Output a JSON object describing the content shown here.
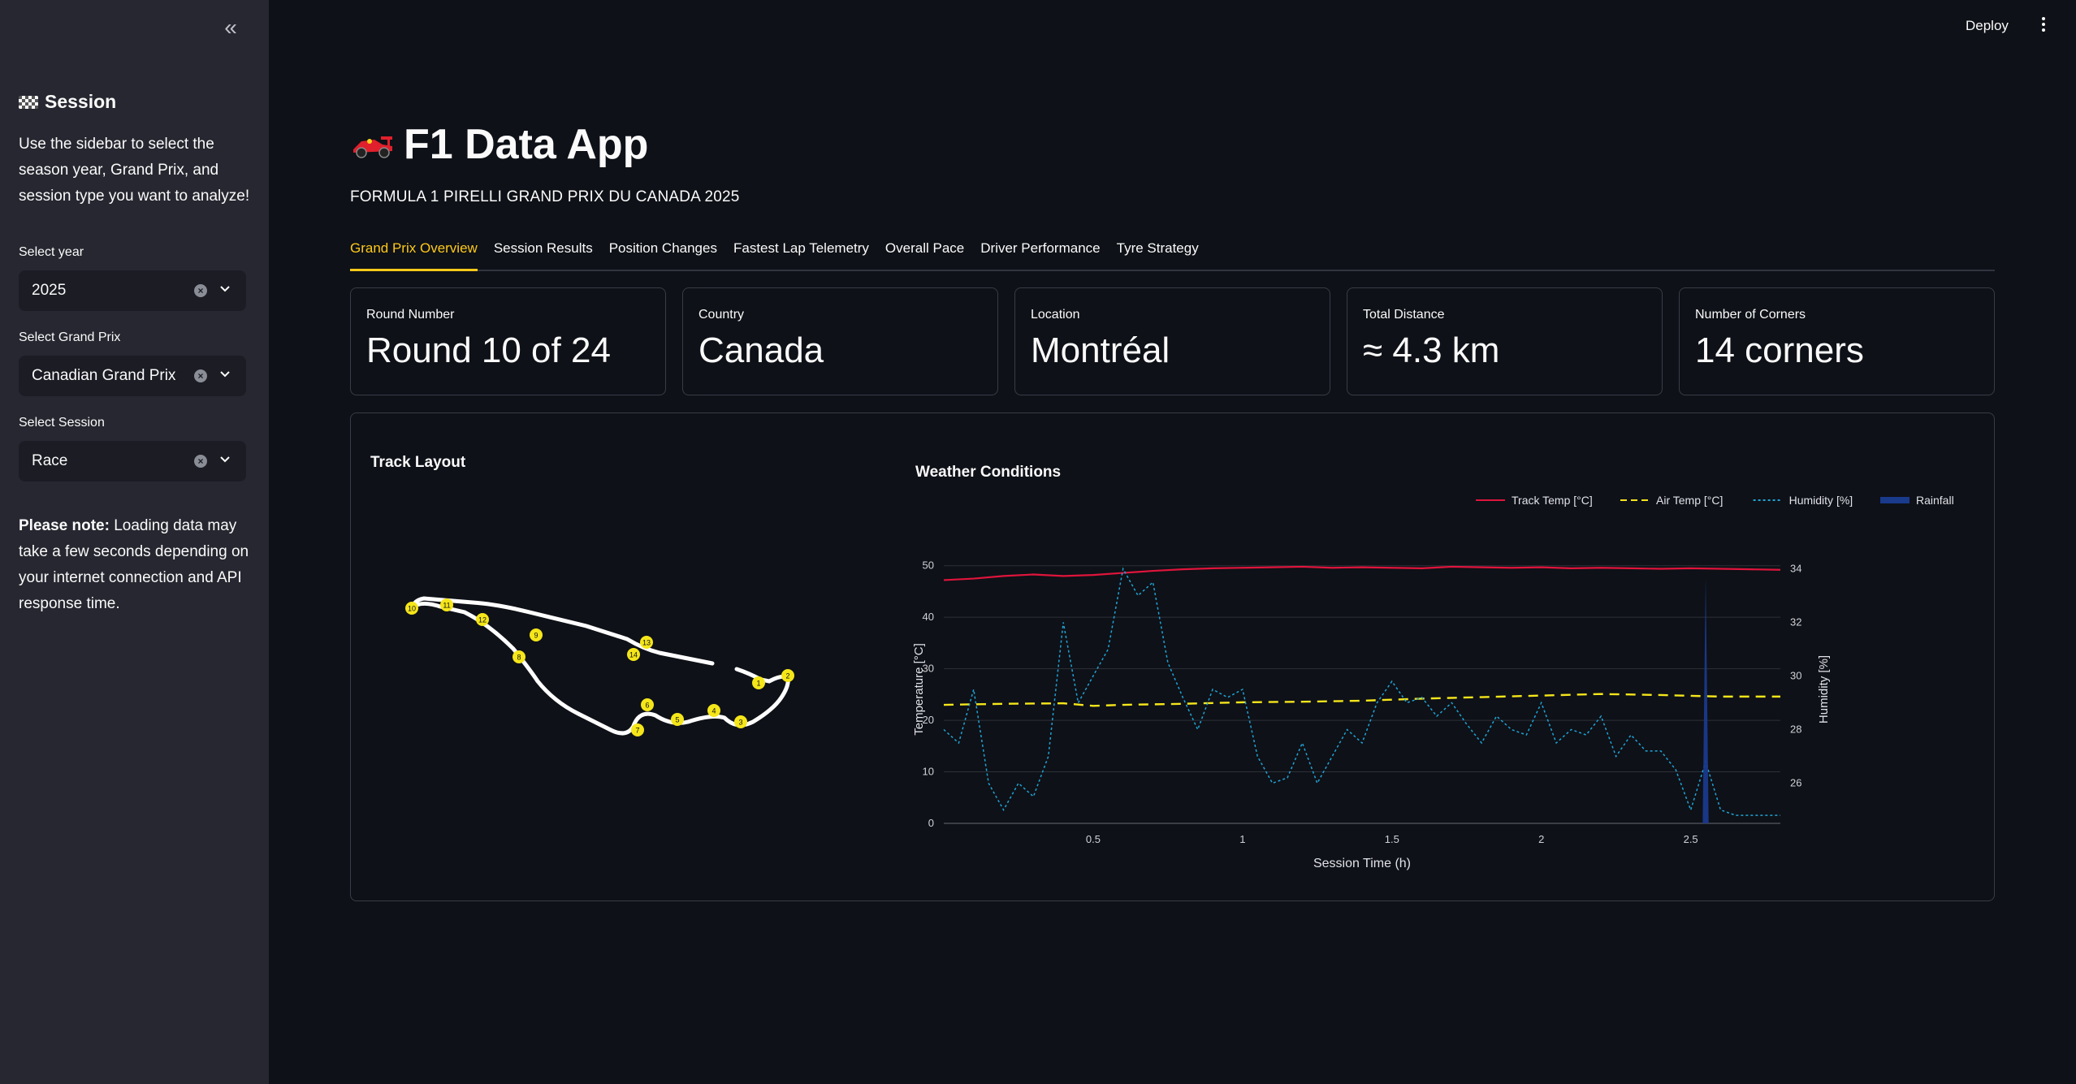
{
  "sidebar": {
    "heading": "Session",
    "intro": "Use the sidebar to select the season year, Grand Prix, and session type you want to analyze!",
    "year_label": "Select year",
    "year_value": "2025",
    "gp_label": "Select Grand Prix",
    "gp_value": "Canadian Grand Prix",
    "session_label": "Select Session",
    "session_value": "Race",
    "note_bold": "Please note:",
    "note_text": " Loading data may take a few seconds depending on your internet connection and API response time."
  },
  "topbar": {
    "deploy": "Deploy"
  },
  "main": {
    "title": "F1 Data App",
    "subtitle": "FORMULA 1 PIRELLI GRAND PRIX DU CANADA 2025",
    "tabs": [
      "Grand Prix Overview",
      "Session Results",
      "Position Changes",
      "Fastest Lap Telemetry",
      "Overall Pace",
      "Driver Performance",
      "Tyre Strategy"
    ],
    "cards": [
      {
        "label": "Round Number",
        "value": "Round 10 of 24"
      },
      {
        "label": "Country",
        "value": "Canada"
      },
      {
        "label": "Location",
        "value": "Montréal"
      },
      {
        "label": "Total Distance",
        "value": "≈ 4.3 km"
      },
      {
        "label": "Number of Corners",
        "value": "14 corners"
      }
    ],
    "track_title": "Track Layout",
    "weather_title": "Weather Conditions"
  },
  "track": {
    "corners": [
      "1",
      "2",
      "3",
      "4",
      "5",
      "6",
      "7",
      "8",
      "9",
      "10",
      "11",
      "12",
      "13",
      "14"
    ]
  },
  "chart_data": {
    "type": "line",
    "xlabel": "Session Time (h)",
    "ylabel": "Temperature [°C]",
    "y2label": "Humidity [%]",
    "xticks": [
      "0.5",
      "1",
      "1.5",
      "2",
      "2.5"
    ],
    "yticks": [
      "0",
      "10",
      "20",
      "30",
      "40",
      "50"
    ],
    "y2ticks": [
      "26",
      "28",
      "30",
      "32",
      "34"
    ],
    "xlim": [
      0,
      2.8
    ],
    "ylim": [
      0,
      52
    ],
    "y2lim": [
      24.5,
      34.5
    ],
    "series": [
      {
        "name": "Track Temp [°C]",
        "color": "#e0143c",
        "style": "solid",
        "x": [
          0,
          0.1,
          0.2,
          0.3,
          0.4,
          0.5,
          0.6,
          0.7,
          0.8,
          0.9,
          1.0,
          1.1,
          1.2,
          1.3,
          1.4,
          1.5,
          1.6,
          1.7,
          1.8,
          1.9,
          2.0,
          2.1,
          2.2,
          2.3,
          2.4,
          2.5,
          2.6,
          2.7,
          2.8
        ],
        "y": [
          47.2,
          47.5,
          48.0,
          48.3,
          48.0,
          48.2,
          48.6,
          49.0,
          49.3,
          49.5,
          49.6,
          49.7,
          49.8,
          49.6,
          49.7,
          49.6,
          49.5,
          49.8,
          49.7,
          49.6,
          49.7,
          49.5,
          49.6,
          49.5,
          49.4,
          49.5,
          49.4,
          49.3,
          49.2
        ]
      },
      {
        "name": "Air Temp [°C]",
        "color": "#f5e61a",
        "style": "dashed",
        "x": [
          0,
          0.2,
          0.4,
          0.5,
          0.6,
          0.8,
          1.0,
          1.2,
          1.4,
          1.6,
          1.8,
          2.0,
          2.2,
          2.4,
          2.6,
          2.8
        ],
        "y": [
          23.0,
          23.2,
          23.3,
          22.8,
          23.0,
          23.2,
          23.5,
          23.6,
          23.8,
          24.2,
          24.5,
          24.8,
          25.1,
          24.9,
          24.6,
          24.6
        ]
      },
      {
        "name": "Humidity [%]",
        "color": "#1fa3d6",
        "style": "dotted",
        "axis": "y2",
        "x": [
          0,
          0.05,
          0.1,
          0.15,
          0.2,
          0.25,
          0.3,
          0.35,
          0.4,
          0.45,
          0.5,
          0.55,
          0.6,
          0.65,
          0.7,
          0.75,
          0.8,
          0.85,
          0.9,
          0.95,
          1.0,
          1.05,
          1.1,
          1.15,
          1.2,
          1.25,
          1.3,
          1.35,
          1.4,
          1.45,
          1.5,
          1.55,
          1.6,
          1.65,
          1.7,
          1.75,
          1.8,
          1.85,
          1.9,
          1.95,
          2.0,
          2.05,
          2.1,
          2.15,
          2.2,
          2.25,
          2.3,
          2.35,
          2.4,
          2.45,
          2.5,
          2.55,
          2.6,
          2.65,
          2.7,
          2.75,
          2.8
        ],
        "y": [
          28,
          27.5,
          29.5,
          26,
          25,
          26,
          25.5,
          27,
          32,
          29,
          30,
          31,
          34,
          33,
          33.5,
          30.5,
          29.2,
          28,
          29.5,
          29.2,
          29.5,
          27,
          26,
          26.2,
          27.5,
          26,
          27,
          28,
          27.5,
          29,
          29.8,
          29,
          29.2,
          28.5,
          29,
          28.2,
          27.5,
          28.5,
          28,
          27.8,
          29,
          27.5,
          28,
          27.8,
          28.5,
          27,
          27.8,
          27.2,
          27.2,
          26.5,
          25,
          26.8,
          25,
          24.8,
          24.8,
          24.8,
          24.8
        ]
      },
      {
        "name": "Rainfall",
        "color": "#1a3a8c",
        "style": "area",
        "x": [
          2.54,
          2.55,
          2.56,
          2.57
        ],
        "y": [
          0,
          48,
          0,
          0
        ]
      }
    ],
    "legend_position": "top-right",
    "grid": true
  }
}
